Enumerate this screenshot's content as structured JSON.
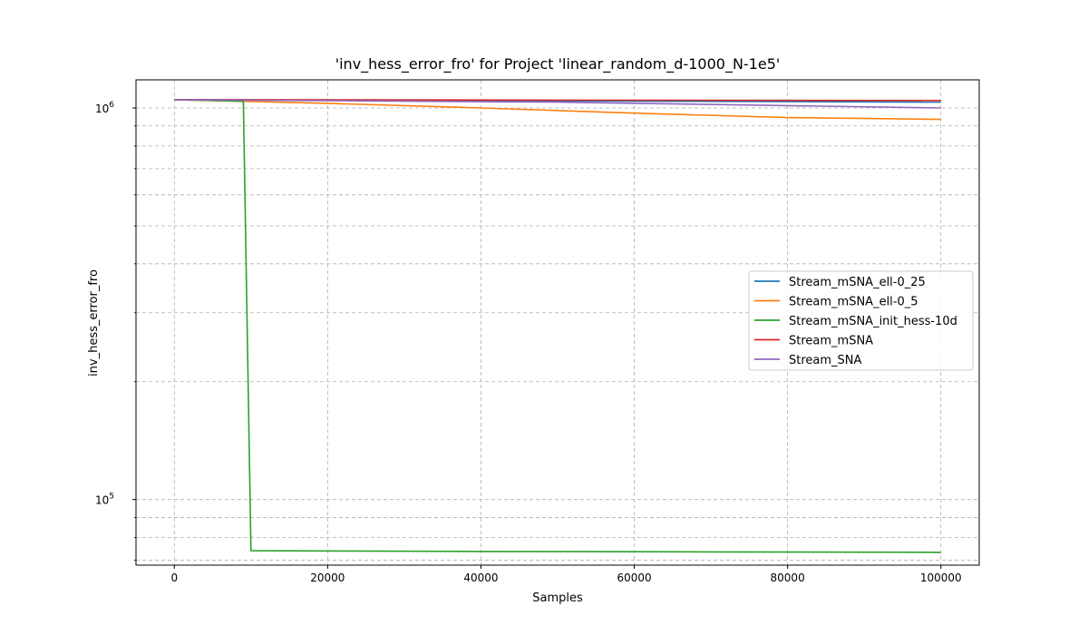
{
  "chart_data": {
    "type": "line",
    "title": "'inv_hess_error_fro' for Project 'linear_random_d-1000_N-1e5'",
    "xlabel": "Samples",
    "ylabel": "inv_hess_error_fro",
    "yscale": "log",
    "xlim": [
      -5000,
      105000
    ],
    "ylim": [
      68000,
      1180000
    ],
    "xticks": [
      0,
      20000,
      40000,
      60000,
      80000,
      100000
    ],
    "xtick_labels": [
      "0",
      "20000",
      "40000",
      "60000",
      "80000",
      "100000"
    ],
    "yticks": [
      100000,
      1000000
    ],
    "ytick_labels": [
      {
        "base": "10",
        "exp": "5"
      },
      {
        "base": "10",
        "exp": "6"
      }
    ],
    "yminor": [
      70000,
      80000,
      90000,
      200000,
      300000,
      400000,
      500000,
      600000,
      700000,
      800000,
      900000
    ],
    "grid": true,
    "legend_position": "center-right",
    "series": [
      {
        "name": "Stream_mSNA_ell-0_25",
        "color": "#1f77b4",
        "x": [
          0,
          100000
        ],
        "y": [
          1050000,
          1035000
        ]
      },
      {
        "name": "Stream_mSNA_ell-0_5",
        "color": "#ff7f0e",
        "x": [
          0,
          20000,
          40000,
          60000,
          80000,
          100000
        ],
        "y": [
          1050000,
          1028000,
          1000000,
          970000,
          945000,
          935000
        ]
      },
      {
        "name": "Stream_mSNA_init_hess-10d",
        "color": "#2ca02c",
        "x": [
          0,
          9000,
          10000,
          40000,
          70000,
          100000
        ],
        "y": [
          1050000,
          1040000,
          74000,
          73700,
          73500,
          73300
        ]
      },
      {
        "name": "Stream_mSNA",
        "color": "#d62728",
        "x": [
          0,
          100000
        ],
        "y": [
          1050000,
          1045000
        ]
      },
      {
        "name": "Stream_SNA",
        "color": "#9467bd",
        "x": [
          0,
          50000,
          100000
        ],
        "y": [
          1050000,
          1035000,
          1000000
        ]
      }
    ]
  }
}
